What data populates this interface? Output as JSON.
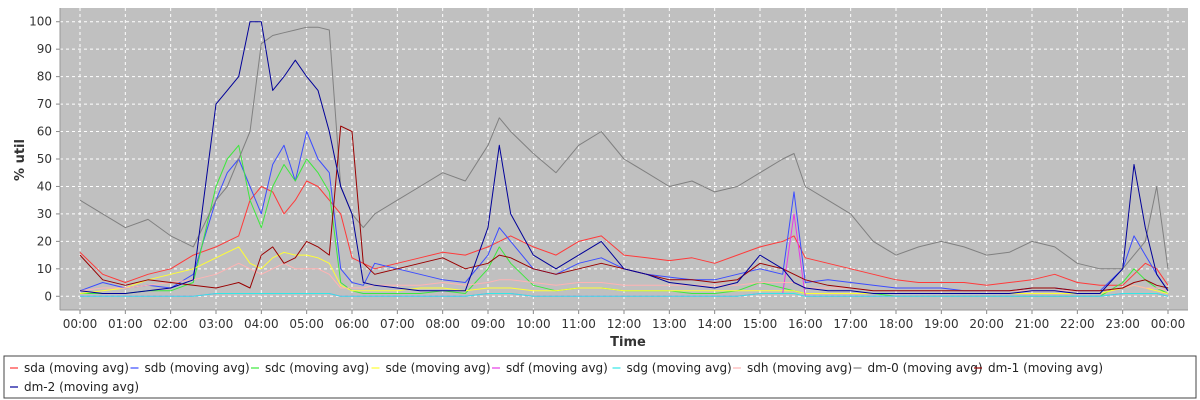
{
  "chart_data": {
    "type": "line",
    "title": "",
    "xlabel": "Time",
    "ylabel": "% util",
    "xlim": [
      0,
      24
    ],
    "ylim": [
      -5,
      105
    ],
    "grid": true,
    "legend_placement": "bottom",
    "xticks": [
      "00:00",
      "01:00",
      "02:00",
      "03:00",
      "04:00",
      "05:00",
      "06:00",
      "07:00",
      "08:00",
      "09:00",
      "10:00",
      "11:00",
      "12:00",
      "13:00",
      "14:00",
      "15:00",
      "16:00",
      "17:00",
      "18:00",
      "19:00",
      "20:00",
      "21:00",
      "22:00",
      "23:00",
      "00:00"
    ],
    "yticks": [
      0,
      10,
      20,
      30,
      40,
      50,
      60,
      70,
      80,
      90,
      100
    ],
    "x_hours": [
      0,
      0.5,
      1,
      1.5,
      2,
      2.5,
      3,
      3.25,
      3.5,
      3.75,
      4,
      4.25,
      4.5,
      4.75,
      5,
      5.25,
      5.5,
      5.75,
      6,
      6.25,
      6.5,
      7,
      7.5,
      8,
      8.5,
      9,
      9.25,
      9.5,
      10,
      10.5,
      11,
      11.5,
      12,
      12.5,
      13,
      13.5,
      14,
      14.5,
      15,
      15.5,
      15.75,
      16,
      16.5,
      17,
      17.5,
      18,
      18.5,
      19,
      19.5,
      20,
      20.5,
      21,
      21.5,
      22,
      22.5,
      23,
      23.25,
      23.5,
      23.75,
      24
    ],
    "series": [
      {
        "name": "sda (moving avg)",
        "color": "#ff3a3a",
        "values": [
          16,
          8,
          5,
          8,
          10,
          15,
          18,
          20,
          22,
          35,
          40,
          38,
          30,
          35,
          42,
          40,
          35,
          30,
          14,
          12,
          10,
          12,
          14,
          16,
          15,
          18,
          20,
          22,
          18,
          15,
          20,
          22,
          15,
          14,
          13,
          14,
          12,
          15,
          18,
          20,
          22,
          14,
          12,
          10,
          8,
          6,
          5,
          5,
          5,
          4,
          5,
          6,
          8,
          5,
          4,
          4,
          8,
          12,
          10,
          4
        ]
      },
      {
        "name": "sdb (moving avg)",
        "color": "#3b4cff",
        "values": [
          2,
          5,
          3,
          4,
          3,
          8,
          35,
          45,
          50,
          40,
          30,
          48,
          55,
          42,
          60,
          50,
          45,
          10,
          5,
          4,
          12,
          10,
          8,
          6,
          5,
          15,
          25,
          20,
          10,
          8,
          12,
          14,
          10,
          8,
          7,
          6,
          6,
          8,
          10,
          8,
          38,
          5,
          6,
          5,
          4,
          3,
          3,
          3,
          2,
          2,
          2,
          3,
          3,
          2,
          2,
          10,
          22,
          15,
          8,
          2
        ]
      },
      {
        "name": "sdc (moving avg)",
        "color": "#3de83d",
        "values": [
          1,
          1,
          1,
          2,
          2,
          5,
          40,
          50,
          55,
          35,
          25,
          40,
          48,
          42,
          50,
          45,
          38,
          5,
          2,
          1,
          1,
          1,
          1,
          2,
          1,
          10,
          18,
          12,
          4,
          2,
          3,
          3,
          2,
          2,
          2,
          1,
          1,
          2,
          5,
          3,
          2,
          1,
          1,
          1,
          1,
          0,
          0,
          0,
          0,
          0,
          0,
          0,
          0,
          0,
          0,
          5,
          10,
          6,
          3,
          1
        ]
      },
      {
        "name": "sde (moving avg)",
        "color": "#ffff33",
        "values": [
          1,
          2,
          3,
          6,
          8,
          10,
          14,
          16,
          18,
          12,
          10,
          14,
          16,
          15,
          15,
          14,
          12,
          4,
          2,
          2,
          2,
          2,
          3,
          3,
          2,
          3,
          3,
          3,
          2,
          2,
          3,
          3,
          2,
          2,
          2,
          2,
          2,
          2,
          2,
          2,
          2,
          1,
          1,
          1,
          1,
          1,
          1,
          1,
          1,
          1,
          1,
          1,
          1,
          1,
          1,
          3,
          4,
          3,
          2,
          1
        ]
      },
      {
        "name": "sdf (moving avg)",
        "color": "#e63be6",
        "values": [
          0,
          0,
          0,
          0,
          0,
          0,
          1,
          1,
          1,
          1,
          1,
          1,
          1,
          1,
          1,
          1,
          1,
          0,
          0,
          0,
          0,
          0,
          0,
          0,
          0,
          1,
          1,
          1,
          0,
          0,
          0,
          0,
          0,
          0,
          0,
          0,
          0,
          0,
          1,
          1,
          30,
          0,
          0,
          0,
          0,
          0,
          0,
          0,
          0,
          0,
          0,
          0,
          0,
          0,
          0,
          1,
          1,
          1,
          1,
          0
        ]
      },
      {
        "name": "sdg (moving avg)",
        "color": "#33e6e6",
        "values": [
          0,
          0,
          0,
          0,
          0,
          0,
          1,
          1,
          1,
          1,
          1,
          1,
          1,
          1,
          1,
          1,
          1,
          0,
          0,
          0,
          0,
          0,
          0,
          0,
          0,
          1,
          1,
          1,
          0,
          0,
          0,
          0,
          0,
          0,
          0,
          0,
          0,
          0,
          1,
          1,
          1,
          0,
          0,
          0,
          0,
          0,
          0,
          0,
          0,
          0,
          0,
          0,
          0,
          0,
          0,
          1,
          1,
          1,
          1,
          0
        ]
      },
      {
        "name": "sdh (moving avg)",
        "color": "#ffb3b3",
        "values": [
          2,
          3,
          3,
          4,
          5,
          6,
          8,
          10,
          12,
          10,
          8,
          10,
          12,
          10,
          10,
          10,
          8,
          3,
          3,
          3,
          4,
          4,
          4,
          5,
          4,
          5,
          6,
          6,
          5,
          4,
          5,
          5,
          4,
          4,
          4,
          4,
          4,
          4,
          5,
          5,
          5,
          3,
          3,
          3,
          2,
          2,
          2,
          2,
          2,
          2,
          2,
          2,
          2,
          2,
          2,
          3,
          4,
          3,
          3,
          2
        ]
      },
      {
        "name": "dm-0 (moving avg)",
        "color": "#808080",
        "values": [
          35,
          30,
          25,
          28,
          22,
          18,
          35,
          40,
          50,
          60,
          92,
          95,
          96,
          97,
          98,
          98,
          97,
          40,
          30,
          25,
          30,
          35,
          40,
          45,
          42,
          55,
          65,
          60,
          52,
          45,
          55,
          60,
          50,
          45,
          40,
          42,
          38,
          40,
          45,
          50,
          52,
          40,
          35,
          30,
          20,
          15,
          18,
          20,
          18,
          15,
          16,
          20,
          18,
          12,
          10,
          10,
          15,
          20,
          40,
          10
        ]
      },
      {
        "name": "dm-1 (moving avg)",
        "color": "#990000",
        "values": [
          15,
          6,
          4,
          6,
          5,
          4,
          3,
          4,
          5,
          3,
          15,
          18,
          12,
          14,
          20,
          18,
          15,
          62,
          60,
          12,
          8,
          10,
          12,
          14,
          10,
          12,
          15,
          14,
          10,
          8,
          10,
          12,
          10,
          8,
          6,
          6,
          5,
          6,
          12,
          10,
          8,
          6,
          4,
          3,
          2,
          2,
          2,
          2,
          2,
          2,
          2,
          3,
          3,
          2,
          2,
          3,
          5,
          6,
          4,
          3
        ]
      },
      {
        "name": "dm-2 (moving avg)",
        "color": "#000099",
        "values": [
          2,
          1,
          1,
          2,
          3,
          6,
          70,
          75,
          80,
          100,
          100,
          75,
          80,
          86,
          80,
          75,
          60,
          40,
          30,
          5,
          4,
          3,
          2,
          2,
          2,
          25,
          55,
          30,
          15,
          10,
          15,
          20,
          10,
          8,
          5,
          4,
          3,
          5,
          15,
          10,
          5,
          3,
          2,
          2,
          1,
          1,
          1,
          1,
          1,
          1,
          1,
          2,
          2,
          1,
          1,
          10,
          48,
          25,
          8,
          2
        ]
      }
    ]
  }
}
